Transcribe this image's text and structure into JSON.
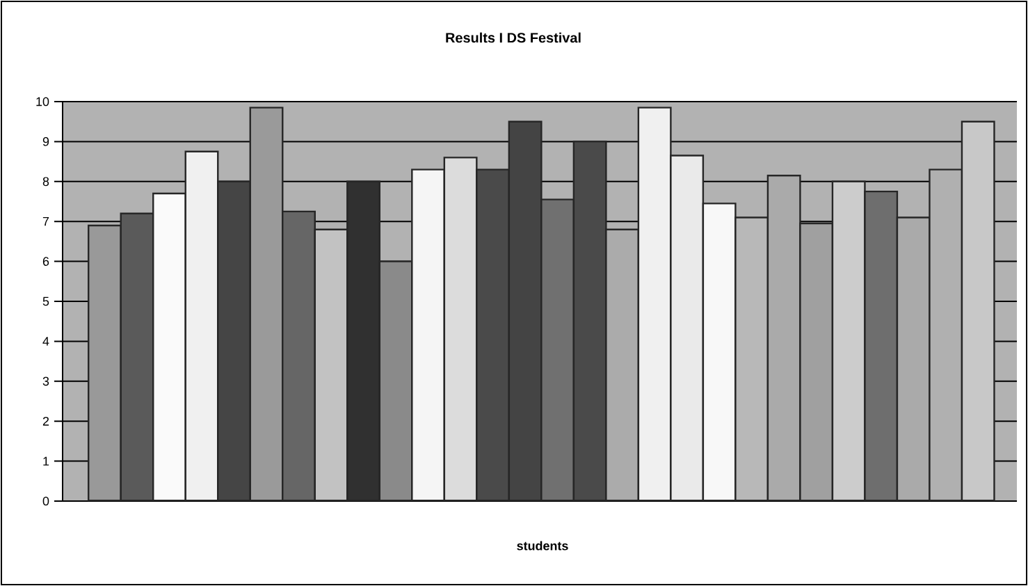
{
  "chart_data": {
    "type": "bar",
    "title": "Results I DS Festival",
    "xlabel": "students",
    "categories": [
      null,
      null,
      null,
      null,
      null,
      null,
      null,
      null,
      null,
      null,
      null,
      null,
      null,
      null,
      null,
      null,
      null,
      null,
      null,
      null,
      null,
      null,
      null,
      null,
      null,
      null,
      null,
      null
    ],
    "values": [
      6.9,
      7.2,
      7.7,
      8.75,
      8.0,
      9.85,
      7.25,
      6.8,
      8.0,
      6.0,
      8.3,
      8.6,
      8.3,
      9.5,
      7.55,
      9.0,
      6.8,
      9.85,
      8.65,
      7.45,
      7.1,
      8.15,
      6.95,
      8.0,
      7.75,
      7.1,
      8.3,
      9.5
    ],
    "colors": [
      "#999999",
      "#5a5a5a",
      "#fafafa",
      "#f0f0f0",
      "#454545",
      "#9a9a9a",
      "#666666",
      "#c2c2c2",
      "#303030",
      "#8a8a8a",
      "#f5f5f5",
      "#dcdcdc",
      "#4a4a4a",
      "#444444",
      "#707070",
      "#4a4a4a",
      "#ababab",
      "#f0f0f0",
      "#eaeaea",
      "#f8f8f8",
      "#b8b8b8",
      "#aaaaaa",
      "#a0a0a0",
      "#cccccc",
      "#6e6e6e",
      "#aaaaaa",
      "#b0b0b0",
      "#c8c8c8"
    ],
    "ylim": [
      0,
      10
    ],
    "yticks": [
      0,
      1,
      2,
      3,
      4,
      5,
      6,
      7,
      8,
      9,
      10
    ],
    "grid": "y"
  }
}
